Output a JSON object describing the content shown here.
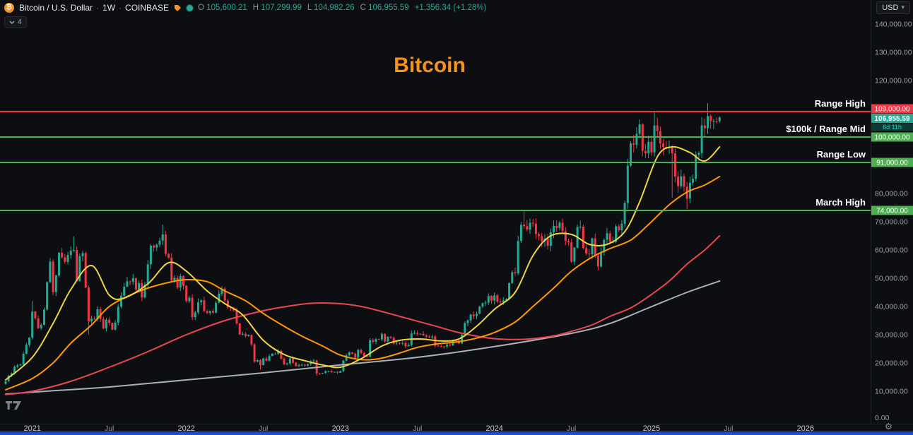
{
  "topbar": {
    "symbol_title": "Bitcoin / U.S. Dollar",
    "sep": "·",
    "interval": "1W",
    "exchange": "COINBASE",
    "ohlc": {
      "o_label": "O",
      "o_value": "105,600.21",
      "h_label": "H",
      "h_value": "107,299.99",
      "l_label": "L",
      "l_value": "104,982.26",
      "c_label": "C",
      "c_value": "106,955.59",
      "change": "+1,356.34 (+1.28%)"
    },
    "currency_button_label": "USD"
  },
  "toolbar_chip": {
    "count": "4"
  },
  "watermark_title": "Bitcoin",
  "current_price": {
    "value": "106,955.59",
    "countdown": "6d 11h"
  },
  "colors": {
    "background": "#0d0e11",
    "up": "#22ab94",
    "down": "#f23645",
    "accent_orange": "#f7931a",
    "level_green": "#4caf50",
    "level_red": "#f23645",
    "axis_text": "#9aa0aa"
  },
  "chart_data": {
    "type": "candlestick",
    "title": "Bitcoin",
    "interval": "1W",
    "ylim": [
      0,
      148500
    ],
    "y_ticks": [
      {
        "v": 140000,
        "label": "140,000.00"
      },
      {
        "v": 130000,
        "label": "130,000.00"
      },
      {
        "v": 120000,
        "label": "120,000.00"
      },
      {
        "v": 80000,
        "label": "80,000.00"
      },
      {
        "v": 70000,
        "label": "70,000.00"
      },
      {
        "v": 60000,
        "label": "60,000.00"
      },
      {
        "v": 50000,
        "label": "50,000.00"
      },
      {
        "v": 40000,
        "label": "40,000.00"
      },
      {
        "v": 30000,
        "label": "30,000.00"
      },
      {
        "v": 20000,
        "label": "20,000.00"
      },
      {
        "v": 10000,
        "label": "10,000.00"
      },
      {
        "v": 0,
        "label": "0.00"
      }
    ],
    "x_ticks": [
      {
        "i": 9,
        "label": "2021",
        "major": true
      },
      {
        "i": 35,
        "label": "Jul",
        "major": false
      },
      {
        "i": 61,
        "label": "2022",
        "major": true
      },
      {
        "i": 87,
        "label": "Jul",
        "major": false
      },
      {
        "i": 113,
        "label": "2023",
        "major": true
      },
      {
        "i": 139,
        "label": "Jul",
        "major": false
      },
      {
        "i": 165,
        "label": "2024",
        "major": true
      },
      {
        "i": 191,
        "label": "Jul",
        "major": false
      },
      {
        "i": 218,
        "label": "2025",
        "major": true
      },
      {
        "i": 244,
        "label": "Jul",
        "major": false
      },
      {
        "i": 270,
        "label": "2026",
        "major": true
      }
    ],
    "closes": [
      13550,
      15480,
      16320,
      18660,
      19150,
      19420,
      23240,
      26440,
      29000,
      38200,
      35800,
      32300,
      33500,
      38900,
      48600,
      55900,
      45100,
      51000,
      59000,
      57400,
      55800,
      58200,
      59800,
      60000,
      49000,
      57800,
      58900,
      46700,
      34700,
      35700,
      35500,
      39000,
      35600,
      32200,
      35300,
      34200,
      31800,
      34300,
      39900,
      43800,
      47000,
      48900,
      48800,
      50000,
      46000,
      48300,
      43200,
      47700,
      54900,
      61500,
      60900,
      61900,
      63300,
      65500,
      58600,
      57300,
      49200,
      50100,
      46700,
      50800,
      47300,
      41900,
      43100,
      36200,
      37900,
      41500,
      42200,
      38400,
      37700,
      38400,
      37800,
      41300,
      44500,
      46300,
      42100,
      39700,
      39400,
      38600,
      34000,
      30100,
      30300,
      29500,
      29900,
      26600,
      20500,
      21000,
      19250,
      21600,
      20800,
      22450,
      23300,
      23200,
      24300,
      21500,
      19550,
      19800,
      21650,
      20100,
      18900,
      19300,
      19400,
      19100,
      19600,
      20600,
      20900,
      16300,
      16270,
      16450,
      17100,
      17100,
      16750,
      16840,
      16550,
      17130,
      20880,
      22700,
      23750,
      23330,
      21860,
      24630,
      23560,
      22350,
      22200,
      28000,
      27500,
      28450,
      28330,
      30300,
      27600,
      29250,
      28900,
      26930,
      27120,
      26870,
      27070,
      25930,
      26340,
      30480,
      30620,
      30290,
      30290,
      29790,
      29350,
      29040,
      29400,
      26100,
      26000,
      25870,
      25830,
      26530,
      26250,
      27970,
      27920,
      26860,
      29990,
      34090,
      35050,
      37130,
      36570,
      37450,
      39970,
      41200,
      41370,
      43720,
      42070,
      43950,
      41700,
      41550,
      42120,
      42580,
      48290,
      52120,
      51730,
      63170,
      68950,
      68390,
      67210,
      69640,
      69360,
      65650,
      64940,
      63110,
      64030,
      61450,
      66270,
      68530,
      67770,
      69640,
      66680,
      63180,
      62680,
      55850,
      60800,
      68150,
      68250,
      60700,
      58720,
      58440,
      64090,
      57970,
      54160,
      59180,
      63580,
      65890,
      62820,
      62850,
      68380,
      67000,
      69290,
      76680,
      89850,
      97700,
      97280,
      101110,
      104460,
      95100,
      94270,
      98300,
      94560,
      104080,
      102080,
      97700,
      96500,
      96120,
      96580,
      94250,
      86000,
      82580,
      86100,
      82380,
      78200,
      83800,
      85170,
      93750,
      94300,
      104110,
      103120,
      107400,
      105640,
      105690,
      105480,
      106955.59
    ],
    "last_candle": {
      "open": 105600.21,
      "high": 107299.99,
      "low": 104982.26,
      "close": 106955.59
    },
    "wick_overrides": {
      "9": {
        "high": 41950
      },
      "23": {
        "high": 64850
      },
      "28": {
        "low": 30000
      },
      "53": {
        "high": 69000
      },
      "86": {
        "low": 17600
      },
      "105": {
        "low": 15500
      },
      "175": {
        "high": 73700
      },
      "219": {
        "high": 109300
      },
      "225": {
        "low": 78500
      },
      "230": {
        "low": 74450
      },
      "237": {
        "high": 111980
      }
    },
    "ma_series": [
      {
        "name": "ma-gray",
        "color": "#aab0b6",
        "points": [
          [
            0,
            9000
          ],
          [
            18,
            10300
          ],
          [
            35,
            11500
          ],
          [
            61,
            14000
          ],
          [
            87,
            16500
          ],
          [
            113,
            19300
          ],
          [
            139,
            22000
          ],
          [
            165,
            25800
          ],
          [
            191,
            30500
          ],
          [
            204,
            34000
          ],
          [
            217,
            39500
          ],
          [
            230,
            45000
          ],
          [
            241,
            49000
          ]
        ]
      },
      {
        "name": "ma-red",
        "color": "#e84752",
        "points": [
          [
            0,
            8800
          ],
          [
            9,
            10000
          ],
          [
            22,
            13500
          ],
          [
            35,
            18500
          ],
          [
            48,
            24000
          ],
          [
            61,
            30000
          ],
          [
            74,
            35000
          ],
          [
            87,
            38500
          ],
          [
            96,
            40200
          ],
          [
            104,
            41200
          ],
          [
            113,
            41000
          ],
          [
            120,
            40000
          ],
          [
            126,
            38500
          ],
          [
            133,
            36500
          ],
          [
            139,
            34800
          ],
          [
            146,
            32800
          ],
          [
            152,
            31000
          ],
          [
            159,
            29500
          ],
          [
            165,
            28600
          ],
          [
            172,
            28300
          ],
          [
            178,
            28600
          ],
          [
            185,
            29600
          ],
          [
            191,
            31200
          ],
          [
            198,
            33500
          ],
          [
            204,
            36500
          ],
          [
            211,
            39500
          ],
          [
            217,
            43500
          ],
          [
            224,
            49000
          ],
          [
            230,
            55000
          ],
          [
            236,
            60000
          ],
          [
            241,
            65000
          ]
        ]
      },
      {
        "name": "ma-orange",
        "color": "#ff9800",
        "points": [
          [
            0,
            10500
          ],
          [
            9,
            14500
          ],
          [
            16,
            20000
          ],
          [
            22,
            27000
          ],
          [
            29,
            33500
          ],
          [
            35,
            40000
          ],
          [
            42,
            44000
          ],
          [
            48,
            46500
          ],
          [
            55,
            48500
          ],
          [
            61,
            49500
          ],
          [
            68,
            48800
          ],
          [
            74,
            45500
          ],
          [
            81,
            42000
          ],
          [
            87,
            37500
          ],
          [
            94,
            33000
          ],
          [
            100,
            29500
          ],
          [
            107,
            26000
          ],
          [
            113,
            22800
          ],
          [
            120,
            21200
          ],
          [
            126,
            21500
          ],
          [
            133,
            23500
          ],
          [
            139,
            25500
          ],
          [
            146,
            26800
          ],
          [
            152,
            27400
          ],
          [
            159,
            28800
          ],
          [
            165,
            30800
          ],
          [
            172,
            34500
          ],
          [
            178,
            40000
          ],
          [
            185,
            46500
          ],
          [
            191,
            52500
          ],
          [
            198,
            57500
          ],
          [
            204,
            60500
          ],
          [
            211,
            63500
          ],
          [
            217,
            69000
          ],
          [
            224,
            76000
          ],
          [
            230,
            80500
          ],
          [
            236,
            83000
          ],
          [
            241,
            86000
          ]
        ]
      },
      {
        "name": "ma-yellow",
        "color": "#f0d43f",
        "points": [
          [
            0,
            14000
          ],
          [
            9,
            22000
          ],
          [
            16,
            34000
          ],
          [
            22,
            46000
          ],
          [
            29,
            54500
          ],
          [
            35,
            44000
          ],
          [
            40,
            43000
          ],
          [
            48,
            48000
          ],
          [
            55,
            55500
          ],
          [
            61,
            52500
          ],
          [
            68,
            45500
          ],
          [
            74,
            41000
          ],
          [
            80,
            37000
          ],
          [
            87,
            28000
          ],
          [
            94,
            23000
          ],
          [
            101,
            20800
          ],
          [
            107,
            19300
          ],
          [
            113,
            18500
          ],
          [
            120,
            21500
          ],
          [
            127,
            26000
          ],
          [
            133,
            28000
          ],
          [
            140,
            28500
          ],
          [
            147,
            27800
          ],
          [
            153,
            28500
          ],
          [
            159,
            33000
          ],
          [
            165,
            39000
          ],
          [
            172,
            45000
          ],
          [
            178,
            58000
          ],
          [
            184,
            65000
          ],
          [
            191,
            65500
          ],
          [
            197,
            62000
          ],
          [
            203,
            62000
          ],
          [
            209,
            66500
          ],
          [
            214,
            77000
          ],
          [
            220,
            93000
          ],
          [
            225,
            96500
          ],
          [
            231,
            94500
          ],
          [
            236,
            91500
          ],
          [
            241,
            96500
          ]
        ]
      }
    ],
    "levels": [
      {
        "price": 109000,
        "label": "Range High",
        "axis_label": "109,000.00",
        "color": "#f23645"
      },
      {
        "price": 100000,
        "label": "$100k / Range Mid",
        "axis_label": "100,000.00",
        "color": "#4caf50"
      },
      {
        "price": 91000,
        "label": "Range Low",
        "axis_label": "91,000.00",
        "color": "#4caf50"
      },
      {
        "price": 74000,
        "label": "March High",
        "axis_label": "74,000.00",
        "color": "#4caf50"
      }
    ]
  }
}
